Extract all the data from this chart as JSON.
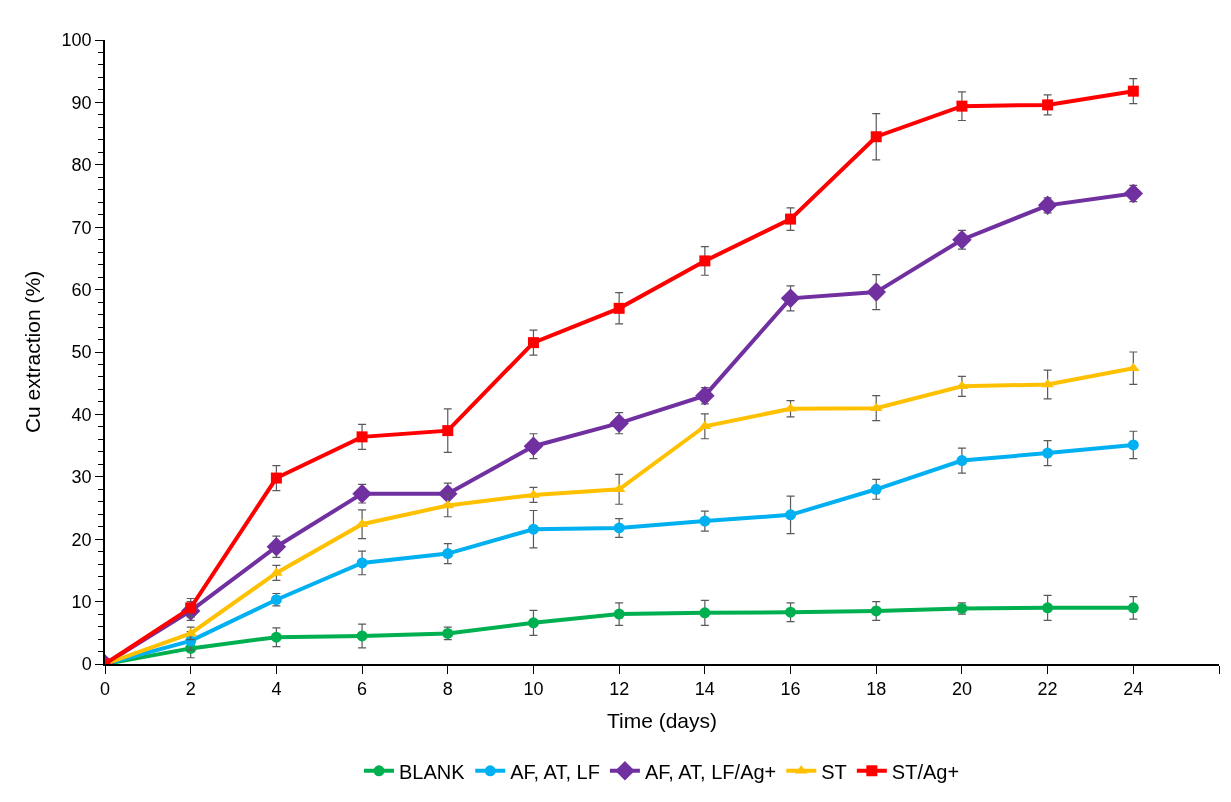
{
  "chart_data": {
    "type": "line",
    "xlabel": "Time (days)",
    "ylabel": "Cu extraction (%)",
    "x": [
      0,
      2,
      4,
      6,
      8,
      10,
      12,
      14,
      16,
      18,
      20,
      22,
      24
    ],
    "xlim": [
      0,
      26
    ],
    "xticks": [
      0,
      2,
      4,
      6,
      8,
      10,
      12,
      14,
      16,
      18,
      20,
      22,
      24,
      {
        "value": 26,
        "label": null
      }
    ],
    "ylim": [
      0,
      100
    ],
    "yticks": [
      0,
      10,
      20,
      30,
      40,
      50,
      60,
      70,
      80,
      90,
      100
    ],
    "legend": "bottom",
    "series": [
      {
        "name": "BLANK",
        "color": "#00b050",
        "marker": "circle",
        "values": [
          0,
          2.5,
          4.3,
          4.5,
          4.9,
          6.6,
          8.0,
          8.2,
          8.3,
          8.5,
          8.9,
          9.0,
          9.0
        ],
        "errors": [
          0,
          1.5,
          1.5,
          1.9,
          1.0,
          2.0,
          1.8,
          2.0,
          1.5,
          1.5,
          0.9,
          2.0,
          1.8
        ]
      },
      {
        "name": "AF, AT, LF",
        "color": "#00b0f0",
        "marker": "circle",
        "values": [
          0,
          3.7,
          10.3,
          16.2,
          17.7,
          21.6,
          21.8,
          22.9,
          23.9,
          28.0,
          32.6,
          33.8,
          35.1
        ],
        "errors": [
          0,
          1.5,
          1.0,
          1.9,
          1.6,
          3.0,
          1.5,
          1.6,
          3.0,
          1.6,
          2.0,
          2.0,
          2.2
        ]
      },
      {
        "name": "AF, AT, LF/Ag+",
        "color": "#7030a0",
        "marker": "diamond",
        "values": [
          0,
          8.5,
          18.8,
          27.3,
          27.3,
          34.9,
          38.6,
          43.0,
          58.6,
          59.6,
          68.0,
          73.5,
          75.4
        ],
        "errors": [
          0,
          1.5,
          1.7,
          1.5,
          1.7,
          2.0,
          1.7,
          1.3,
          2.0,
          2.8,
          1.5,
          1.2,
          1.3
        ]
      },
      {
        "name": "ST",
        "color": "#ffc000",
        "marker": "triangle",
        "values": [
          0,
          4.9,
          14.6,
          22.4,
          25.4,
          27.1,
          28.0,
          38.1,
          40.9,
          41.0,
          44.5,
          44.8,
          47.4
        ],
        "errors": [
          0,
          1.0,
          1.2,
          2.3,
          1.8,
          1.2,
          2.4,
          2.0,
          1.3,
          2.0,
          1.6,
          2.3,
          2.6
        ]
      },
      {
        "name": "ST/Ag+",
        "color": "#ff0000",
        "marker": "square",
        "values": [
          0,
          9.0,
          29.8,
          36.4,
          37.4,
          51.5,
          57.0,
          64.6,
          71.3,
          84.5,
          89.4,
          89.6,
          91.8
        ],
        "errors": [
          0,
          1.5,
          2.0,
          2.0,
          3.5,
          2.0,
          2.5,
          2.3,
          1.8,
          3.7,
          2.3,
          1.6,
          2.0
        ]
      }
    ]
  }
}
